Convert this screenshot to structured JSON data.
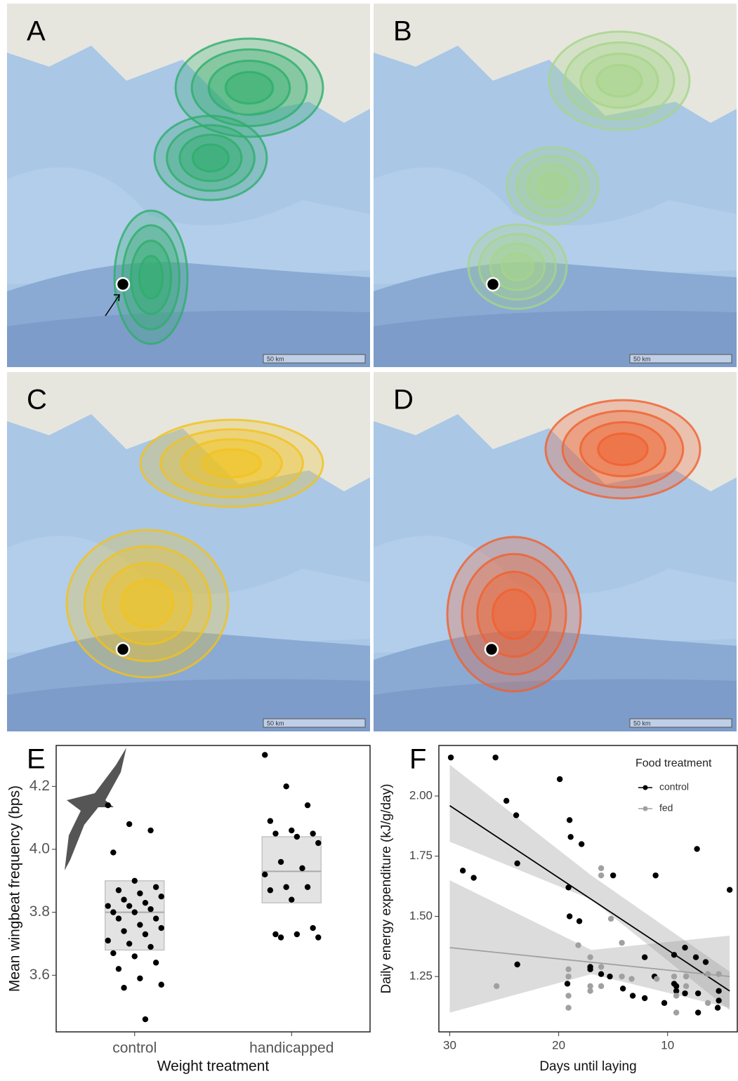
{
  "maps": [
    {
      "label": "A",
      "scale": "50 km",
      "color": "#2eae6a"
    },
    {
      "label": "B",
      "scale": "50 km",
      "color": "#a6d58a"
    },
    {
      "label": "C",
      "scale": "50 km",
      "color": "#f2c21b"
    },
    {
      "label": "D",
      "scale": "50 km",
      "color": "#f0602e"
    }
  ],
  "chart_data": [
    {
      "type": "box_strip",
      "panel_label": "E",
      "y_label": "Mean wingbeat frequency (bps)",
      "x_label": "Weight treatment",
      "categories": [
        "control",
        "handicapped"
      ],
      "points": [
        [
          4.14,
          4.08,
          4.06,
          3.99,
          3.9,
          3.88,
          3.87,
          3.86,
          3.85,
          3.84,
          3.83,
          3.82,
          3.82,
          3.81,
          3.8,
          3.8,
          3.78,
          3.78,
          3.76,
          3.75,
          3.74,
          3.73,
          3.71,
          3.7,
          3.69,
          3.67,
          3.66,
          3.64,
          3.62,
          3.59,
          3.57,
          3.56,
          3.46
        ],
        [
          4.3,
          4.2,
          4.14,
          4.09,
          4.06,
          4.05,
          4.05,
          4.04,
          4.02,
          3.96,
          3.94,
          3.92,
          3.88,
          3.88,
          3.87,
          3.84,
          3.75,
          3.73,
          3.73,
          3.72,
          3.72
        ]
      ],
      "boxes": [
        {
          "q1": 3.68,
          "median": 3.8,
          "q3": 3.9
        },
        {
          "q1": 3.83,
          "median": 3.93,
          "q3": 4.04
        }
      ],
      "point_color": "#000000",
      "box_color": "#e3e3e3",
      "ylim": [
        3.42,
        4.33
      ],
      "yticks": [
        3.6,
        3.8,
        {
          "value": 4.0,
          "label": "4.0"
        },
        4.2
      ]
    },
    {
      "type": "scatter_fit",
      "panel_label": "F",
      "y_label": "Daily energy expenditure (kJ/g/day)",
      "x_label": "Days until laying",
      "legend_title": "Food treatment",
      "legend": "top-right",
      "xlim": [
        31,
        3.6
      ],
      "xticks": [
        30,
        20,
        10
      ],
      "ylim": [
        1.02,
        2.21
      ],
      "yticks": [
        1.25,
        {
          "value": 1.5,
          "label": "1.50"
        },
        1.75,
        {
          "value": 2.0,
          "label": "2.00"
        }
      ],
      "series": [
        {
          "name": "control",
          "color": "#000000",
          "band_color": "#9a9a9a",
          "x": [
            29.9,
            25.8,
            19.9,
            24.8,
            23.9,
            28.8,
            27.8,
            23.8,
            19.0,
            18.9,
            17.9,
            19.1,
            19.0,
            18.1,
            15.0,
            7.3,
            11.1,
            4.3,
            23.8,
            19.2,
            17.1,
            17.1,
            16.1,
            15.3,
            14.1,
            12.1,
            13.2,
            12.1,
            11.2,
            10.3,
            9.4,
            8.4,
            9.4,
            9.2,
            8.4,
            7.4,
            7.2,
            6.5,
            7.2,
            5.3,
            5.3,
            5.4,
            9.2
          ],
          "values": [
            2.16,
            2.16,
            2.07,
            1.98,
            1.92,
            1.69,
            1.66,
            1.72,
            1.9,
            1.83,
            1.8,
            1.62,
            1.5,
            1.48,
            1.67,
            1.78,
            1.67,
            1.61,
            1.3,
            1.22,
            1.29,
            1.28,
            1.26,
            1.25,
            1.2,
            1.33,
            1.17,
            1.16,
            1.25,
            1.14,
            1.34,
            1.37,
            1.22,
            1.21,
            1.18,
            1.33,
            1.18,
            1.31,
            1.1,
            1.19,
            1.15,
            1.12,
            1.19
          ],
          "fit": {
            "x": [
              30,
              4.3
            ],
            "y": [
              1.96,
              1.19
            ]
          },
          "ci": {
            "x": [
              30,
              17,
              4.3
            ],
            "lower": [
              1.81,
              1.57,
              1.11
            ],
            "upper": [
              2.13,
              1.67,
              1.27
            ]
          }
        },
        {
          "name": "fed",
          "color": "#a0a0a0",
          "band_color": "#9a9a9a",
          "x": [
            25.7,
            16.1,
            16.1,
            18.2,
            19.1,
            19.1,
            19.1,
            19.1,
            17.1,
            17.1,
            17.1,
            16.1,
            16.1,
            15.2,
            14.2,
            14.2,
            13.3,
            11.0,
            9.4,
            9.2,
            9.2,
            8.3,
            8.3,
            6.3,
            5.3,
            6.3
          ],
          "values": [
            1.21,
            1.7,
            1.67,
            1.38,
            1.25,
            1.28,
            1.17,
            1.12,
            1.33,
            1.21,
            1.19,
            1.29,
            1.21,
            1.49,
            1.39,
            1.25,
            1.24,
            1.24,
            1.25,
            1.17,
            1.1,
            1.25,
            1.21,
            1.26,
            1.26,
            1.14
          ],
          "fit": {
            "x": [
              30,
              4.3
            ],
            "y": [
              1.37,
              1.25
            ]
          },
          "ci": {
            "x": [
              30,
              17,
              4.3
            ],
            "lower": [
              1.1,
              1.26,
              1.12
            ],
            "upper": [
              1.65,
              1.36,
              1.42
            ]
          }
        }
      ]
    }
  ]
}
